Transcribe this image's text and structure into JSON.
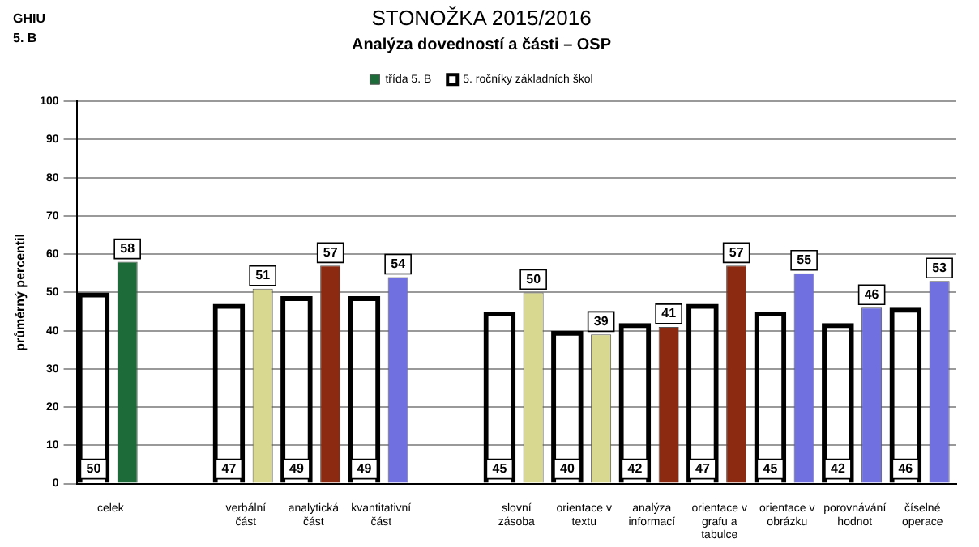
{
  "chart_data": {
    "type": "bar",
    "title": "STONOŽKA 2015/2016",
    "subtitle": "Analýza dovedností a části – OSP",
    "ylabel": "průměrný percentil",
    "annotations": [
      "GHIU",
      "5. B"
    ],
    "categories": [
      "celek",
      null,
      "verbální část",
      "analytická část",
      "kvantitativní část",
      null,
      "slovní zásoba",
      "orientace v textu",
      "analýza informací",
      "orientace v grafu a tabulce",
      "orientace v obrázku",
      "porovnávání hodnot",
      "číselné operace"
    ],
    "series": [
      {
        "name": "třída 5. B",
        "values": [
          58,
          null,
          51,
          57,
          54,
          null,
          50,
          39,
          41,
          57,
          55,
          46,
          53
        ],
        "colors": [
          "#1e6b3a",
          null,
          "#d8d890",
          "#8b2a10",
          "#7070e0",
          null,
          "#d8d890",
          "#d8d890",
          "#8b2a10",
          "#8b2a10",
          "#7070e0",
          "#7070e0",
          "#7070e0"
        ]
      },
      {
        "name": "5. ročníky základních škol",
        "color": "#000000",
        "values": [
          50,
          null,
          47,
          49,
          49,
          null,
          45,
          40,
          42,
          47,
          45,
          42,
          46
        ]
      }
    ],
    "ylim": [
      0,
      100
    ],
    "yticks": [
      0,
      10,
      20,
      30,
      40,
      50,
      60,
      70,
      80,
      90,
      100
    ],
    "grid": "y",
    "legend": "top",
    "data_labels": true
  }
}
